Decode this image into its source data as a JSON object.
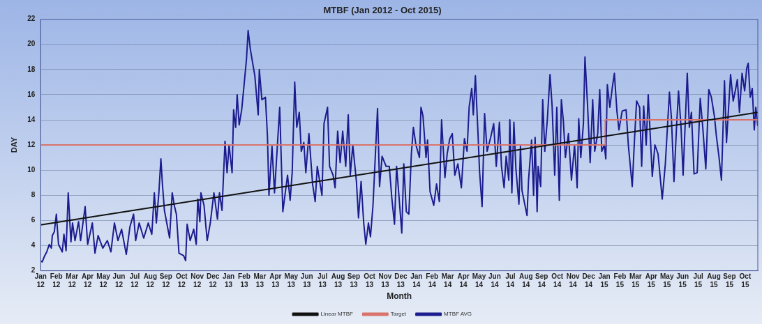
{
  "chart_data": {
    "type": "line",
    "title": "MTBF (Jan 2012 - Oct 2015)",
    "xlabel": "Month",
    "ylabel": "DAY",
    "xlim": [
      "2012-01-01",
      "2015-10-26"
    ],
    "ylim": [
      2,
      22
    ],
    "yticks": [
      2,
      4,
      6,
      8,
      10,
      12,
      14,
      16,
      18,
      20,
      22
    ],
    "xticks": [
      {
        "value": "2012-01",
        "label": "Jan 12"
      },
      {
        "value": "2012-02",
        "label": "Feb 12"
      },
      {
        "value": "2012-03",
        "label": "Mar 12"
      },
      {
        "value": "2012-04",
        "label": "Apr 12"
      },
      {
        "value": "2012-05",
        "label": "May 12"
      },
      {
        "value": "2012-06",
        "label": "Jun 12"
      },
      {
        "value": "2012-07",
        "label": "Jul 12"
      },
      {
        "value": "2012-08",
        "label": "Aug 12"
      },
      {
        "value": "2012-09",
        "label": "Sep 12"
      },
      {
        "value": "2012-10",
        "label": "Oct 12"
      },
      {
        "value": "2012-11",
        "label": "Nov 12"
      },
      {
        "value": "2012-12",
        "label": "Dec 12"
      },
      {
        "value": "2013-01",
        "label": "Jan 13"
      },
      {
        "value": "2013-02",
        "label": "Feb 13"
      },
      {
        "value": "2013-03",
        "label": "Mar 13"
      },
      {
        "value": "2013-04",
        "label": "Apr 13"
      },
      {
        "value": "2013-05",
        "label": "May 13"
      },
      {
        "value": "2013-06",
        "label": "Jun 13"
      },
      {
        "value": "2013-07",
        "label": "Jul 13"
      },
      {
        "value": "2013-08",
        "label": "Aug 13"
      },
      {
        "value": "2013-09",
        "label": "Sep 13"
      },
      {
        "value": "2013-10",
        "label": "Oct 13"
      },
      {
        "value": "2013-11",
        "label": "Nov 13"
      },
      {
        "value": "2013-12",
        "label": "Dec 13"
      },
      {
        "value": "2014-01",
        "label": "Jan 14"
      },
      {
        "value": "2014-02",
        "label": "Feb 14"
      },
      {
        "value": "2014-03",
        "label": "Mar 14"
      },
      {
        "value": "2014-04",
        "label": "Apr 14"
      },
      {
        "value": "2014-05",
        "label": "May 14"
      },
      {
        "value": "2014-06",
        "label": "Jun 14"
      },
      {
        "value": "2014-07",
        "label": "Jul 14"
      },
      {
        "value": "2014-08",
        "label": "Aug 14"
      },
      {
        "value": "2014-09",
        "label": "Sep 14"
      },
      {
        "value": "2014-10",
        "label": "Oct 14"
      },
      {
        "value": "2014-11",
        "label": "Nov 14"
      },
      {
        "value": "2014-12",
        "label": "Dec 14"
      },
      {
        "value": "2015-01",
        "label": "Jan 15"
      },
      {
        "value": "2015-02",
        "label": "Feb 15"
      },
      {
        "value": "2015-03",
        "label": "Mar 15"
      },
      {
        "value": "2015-04",
        "label": "Apr 15"
      },
      {
        "value": "2015-05",
        "label": "May 15"
      },
      {
        "value": "2015-06",
        "label": "Jun 15"
      },
      {
        "value": "2015-07",
        "label": "Jul 15"
      },
      {
        "value": "2015-08",
        "label": "Aug 15"
      },
      {
        "value": "2015-09",
        "label": "Sep 15"
      },
      {
        "value": "2015-10",
        "label": "Oct 15"
      }
    ],
    "grid": "y",
    "legend": "bottom",
    "marker": "none",
    "series": [
      {
        "name": "MTBF AVG",
        "color": "#1c1c8e",
        "x": [
          "2012-01-01",
          "2012-01-04",
          "2012-01-09",
          "2012-01-13",
          "2012-01-18",
          "2012-01-22",
          "2012-01-24",
          "2012-01-28",
          "2012-02-01",
          "2012-02-05",
          "2012-02-12",
          "2012-02-15",
          "2012-02-19",
          "2012-02-23",
          "2012-02-28",
          "2012-03-02",
          "2012-03-07",
          "2012-03-14",
          "2012-03-18",
          "2012-03-27",
          "2012-04-01",
          "2012-04-10",
          "2012-04-15",
          "2012-04-21",
          "2012-04-30",
          "2012-05-09",
          "2012-05-16",
          "2012-05-23",
          "2012-05-30",
          "2012-06-06",
          "2012-06-15",
          "2012-06-22",
          "2012-06-29",
          "2012-07-03",
          "2012-07-10",
          "2012-07-19",
          "2012-07-28",
          "2012-08-04",
          "2012-08-09",
          "2012-08-13",
          "2012-08-18",
          "2012-08-22",
          "2012-08-25",
          "2012-08-29",
          "2012-09-08",
          "2012-09-13",
          "2012-09-17",
          "2012-09-21",
          "2012-09-26",
          "2012-10-05",
          "2012-10-09",
          "2012-10-12",
          "2012-10-18",
          "2012-10-25",
          "2012-10-30",
          "2012-11-02",
          "2012-11-06",
          "2012-11-08",
          "2012-11-14",
          "2012-11-20",
          "2012-11-26",
          "2012-12-03",
          "2012-12-10",
          "2012-12-14",
          "2012-12-19",
          "2012-12-25",
          "2012-12-29",
          "2013-01-02",
          "2013-01-08",
          "2013-01-11",
          "2013-01-15",
          "2013-01-18",
          "2013-01-22",
          "2013-01-27",
          "2013-02-01",
          "2013-02-05",
          "2013-02-08",
          "2013-02-12",
          "2013-02-20",
          "2013-02-26",
          "2013-02-28",
          "2013-03-05",
          "2013-03-12",
          "2013-03-16",
          "2013-03-19",
          "2013-03-25",
          "2013-03-30",
          "2013-04-09",
          "2013-04-15",
          "2013-04-24",
          "2013-04-29",
          "2013-05-03",
          "2013-05-08",
          "2013-05-12",
          "2013-05-17",
          "2013-05-21",
          "2013-05-26",
          "2013-05-30",
          "2013-06-05",
          "2013-06-12",
          "2013-06-17",
          "2013-06-21",
          "2013-06-30",
          "2013-07-04",
          "2013-07-11",
          "2013-07-15",
          "2013-07-22",
          "2013-07-26",
          "2013-07-31",
          "2013-08-05",
          "2013-08-10",
          "2013-08-16",
          "2013-08-21",
          "2013-08-25",
          "2013-08-30",
          "2013-09-06",
          "2013-09-10",
          "2013-09-15",
          "2013-09-20",
          "2013-09-24",
          "2013-09-29",
          "2013-10-03",
          "2013-10-08",
          "2013-10-12",
          "2013-10-17",
          "2013-10-21",
          "2013-10-26",
          "2013-11-03",
          "2013-11-09",
          "2013-11-14",
          "2013-11-19",
          "2013-11-23",
          "2013-11-28",
          "2013-12-03",
          "2013-12-07",
          "2013-12-12",
          "2013-12-17",
          "2013-12-22",
          "2013-12-26",
          "2013-12-31",
          "2014-01-07",
          "2014-01-10",
          "2014-01-14",
          "2014-01-20",
          "2014-01-23",
          "2014-01-28",
          "2014-02-04",
          "2014-02-09",
          "2014-02-14",
          "2014-02-18",
          "2014-02-24",
          "2014-02-28",
          "2014-03-05",
          "2014-03-10",
          "2014-03-15",
          "2014-03-21",
          "2014-03-28",
          "2014-04-03",
          "2014-04-08",
          "2014-04-12",
          "2014-04-17",
          "2014-04-20",
          "2014-04-24",
          "2014-04-29",
          "2014-05-02",
          "2014-05-07",
          "2014-05-12",
          "2014-05-17",
          "2014-05-24",
          "2014-05-30",
          "2014-06-04",
          "2014-06-10",
          "2014-06-14",
          "2014-06-19",
          "2014-06-23",
          "2014-06-28",
          "2014-06-30",
          "2014-07-04",
          "2014-07-08",
          "2014-07-12",
          "2014-07-18",
          "2014-07-21",
          "2014-07-24",
          "2014-08-03",
          "2014-08-06",
          "2014-08-12",
          "2014-08-16",
          "2014-08-19",
          "2014-08-23",
          "2014-08-25",
          "2014-08-30",
          "2014-09-03",
          "2014-09-07",
          "2014-09-12",
          "2014-09-17",
          "2014-09-21",
          "2014-09-26",
          "2014-09-30",
          "2014-10-05",
          "2014-10-09",
          "2014-10-13",
          "2014-10-17",
          "2014-10-23",
          "2014-10-29",
          "2014-11-04",
          "2014-11-09",
          "2014-11-12",
          "2014-11-16",
          "2014-11-21",
          "2014-11-24",
          "2014-11-29",
          "2014-12-04",
          "2014-12-09",
          "2014-12-13",
          "2014-12-19",
          "2014-12-23",
          "2014-12-27",
          "2015-01-01",
          "2015-01-04",
          "2015-01-07",
          "2015-01-12",
          "2015-01-17",
          "2015-01-21",
          "2015-01-26",
          "2015-01-30",
          "2015-02-05",
          "2015-02-12",
          "2015-02-16",
          "2015-02-23",
          "2015-02-27",
          "2015-03-03",
          "2015-03-09",
          "2015-03-13",
          "2015-03-17",
          "2015-03-22",
          "2015-03-26",
          "2015-04-03",
          "2015-04-08",
          "2015-04-14",
          "2015-04-22",
          "2015-04-28",
          "2015-05-06",
          "2015-05-10",
          "2015-05-15",
          "2015-05-20",
          "2015-05-24",
          "2015-05-29",
          "2015-06-02",
          "2015-06-10",
          "2015-06-14",
          "2015-06-18",
          "2015-06-23",
          "2015-06-29",
          "2015-07-05",
          "2015-07-10",
          "2015-07-16",
          "2015-07-22",
          "2015-07-27",
          "2015-08-02",
          "2015-08-06",
          "2015-08-11",
          "2015-08-16",
          "2015-08-22",
          "2015-08-26",
          "2015-09-03",
          "2015-09-08",
          "2015-09-12",
          "2015-09-16",
          "2015-09-20",
          "2015-09-25",
          "2015-09-30",
          "2015-10-04",
          "2015-10-07",
          "2015-10-11",
          "2015-10-15",
          "2015-10-19",
          "2015-10-22",
          "2015-10-26"
        ],
        "values": [
          2.8,
          2.7,
          3.2,
          3.5,
          4.1,
          3.8,
          4.8,
          5.1,
          6.5,
          4.1,
          3.5,
          4.9,
          3.6,
          8.2,
          4.3,
          5.8,
          4.4,
          5.9,
          4.4,
          7.1,
          4.1,
          5.8,
          3.4,
          4.8,
          3.8,
          4.4,
          3.5,
          5.8,
          4.4,
          5.3,
          3.3,
          5.5,
          6.5,
          4.4,
          5.8,
          4.6,
          5.8,
          4.9,
          8.2,
          5.8,
          8.2,
          10.9,
          8.9,
          6.8,
          4.6,
          8.2,
          7.2,
          6.5,
          3.4,
          3.2,
          2.8,
          5.7,
          4.4,
          5.3,
          4.1,
          7.7,
          5.9,
          8.2,
          7.2,
          4.4,
          5.8,
          8.2,
          6.1,
          8.2,
          6.8,
          12.3,
          9.8,
          12.0,
          9.8,
          14.8,
          13.4,
          16.0,
          13.6,
          14.8,
          16.9,
          18.8,
          21.1,
          19.6,
          17.5,
          14.4,
          18.0,
          15.6,
          15.8,
          12.7,
          8.0,
          11.9,
          8.2,
          15.0,
          6.7,
          9.6,
          7.6,
          9.8,
          17.0,
          13.4,
          14.6,
          11.5,
          12.2,
          9.8,
          12.9,
          8.9,
          7.5,
          10.3,
          8.0,
          13.7,
          15.0,
          10.3,
          9.6,
          8.6,
          13.1,
          10.6,
          13.1,
          10.3,
          14.4,
          9.6,
          12.0,
          9.1,
          6.2,
          9.1,
          5.8,
          4.1,
          5.8,
          4.7,
          7.2,
          10.6,
          14.9,
          8.7,
          11.1,
          10.3,
          10.3,
          7.7,
          5.7,
          10.3,
          7.7,
          5.0,
          10.5,
          6.7,
          6.5,
          11.3,
          13.4,
          12.0,
          11.0,
          15.0,
          14.3,
          11.0,
          12.4,
          8.3,
          7.2,
          8.9,
          7.5,
          14.0,
          9.4,
          11.3,
          12.5,
          12.9,
          9.6,
          10.5,
          8.6,
          12.5,
          11.5,
          15.0,
          16.5,
          14.4,
          17.5,
          12.9,
          9.9,
          7.1,
          14.5,
          11.5,
          12.6,
          13.7,
          10.3,
          13.8,
          10.3,
          8.6,
          11.1,
          9.2,
          14.0,
          8.2,
          13.8,
          10.1,
          7.3,
          11.9,
          8.4,
          6.4,
          9.2,
          12.4,
          8.0,
          12.6,
          6.7,
          10.3,
          8.7,
          15.6,
          11.5,
          14.1,
          17.6,
          15.1,
          9.6,
          15.0,
          7.6,
          15.6,
          13.9,
          11.0,
          12.9,
          9.2,
          12.0,
          8.6,
          14.1,
          11.0,
          13.7,
          19.0,
          15.1,
          10.6,
          15.6,
          11.5,
          12.9,
          16.4,
          11.5,
          12.0,
          10.9,
          16.8,
          15.0,
          16.6,
          17.7,
          14.7,
          13.2,
          14.7,
          14.8,
          12.0,
          8.7,
          12.4,
          15.5,
          15.0,
          10.3,
          15.1,
          12.0,
          16.0,
          9.5,
          12.0,
          11.3,
          7.7,
          10.5,
          16.2,
          14.1,
          9.1,
          13.4,
          16.3,
          13.4,
          9.6,
          17.7,
          13.4,
          14.6,
          9.7,
          9.8,
          15.7,
          13.4,
          10.1,
          16.4,
          15.8,
          14.3,
          12.7,
          11.1,
          9.2,
          17.1,
          12.2,
          17.6,
          15.5,
          16.3,
          17.2,
          14.6,
          17.7,
          16.3,
          18.1,
          18.5,
          15.8,
          16.5,
          13.2,
          15.0,
          13.5
        ]
      },
      {
        "name": "Target",
        "color": "#d9736a",
        "x": [
          "2012-01-01",
          "2015-01-03",
          "2015-01-03",
          "2015-10-26"
        ],
        "values": [
          12,
          12,
          14,
          14
        ]
      },
      {
        "name": "Linear MTBF",
        "color": "#111111",
        "x": [
          "2012-01-01",
          "2015-10-26"
        ],
        "values": [
          5.65,
          14.6
        ]
      }
    ]
  }
}
